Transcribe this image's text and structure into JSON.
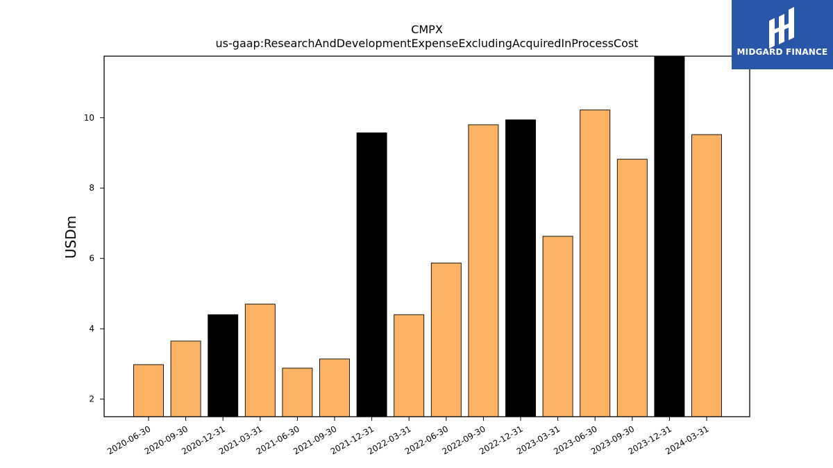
{
  "chart_data": {
    "type": "bar",
    "title": "CMPX",
    "subtitle": "us-gaap:ResearchAndDevelopmentExpenseExcludingAcquiredInProcessCost",
    "xlabel": "",
    "ylabel": "USDm",
    "ylim": [
      1.5,
      11.75
    ],
    "yticks": [
      2,
      4,
      6,
      8,
      10
    ],
    "grid": false,
    "categories": [
      "2020-06-30",
      "2020-09-30",
      "2020-12-31",
      "2021-03-31",
      "2021-06-30",
      "2021-09-30",
      "2021-12-31",
      "2022-03-31",
      "2022-06-30",
      "2022-09-30",
      "2022-12-31",
      "2023-03-31",
      "2023-06-30",
      "2023-09-30",
      "2023-12-31",
      "2024-03-31"
    ],
    "values": [
      2.98,
      3.65,
      4.4,
      4.7,
      2.88,
      3.14,
      9.57,
      4.4,
      5.87,
      9.8,
      9.94,
      6.63,
      10.22,
      8.82,
      11.75,
      9.52
    ],
    "highlighted": [
      false,
      false,
      true,
      false,
      false,
      false,
      true,
      false,
      false,
      false,
      true,
      false,
      false,
      false,
      true,
      false
    ],
    "colors": {
      "bar": "#fbb263",
      "highlight": "#000000",
      "edge": "#000000"
    }
  },
  "logo": {
    "text": "MIDGARD FINANCE",
    "color": "#2a56a8"
  }
}
